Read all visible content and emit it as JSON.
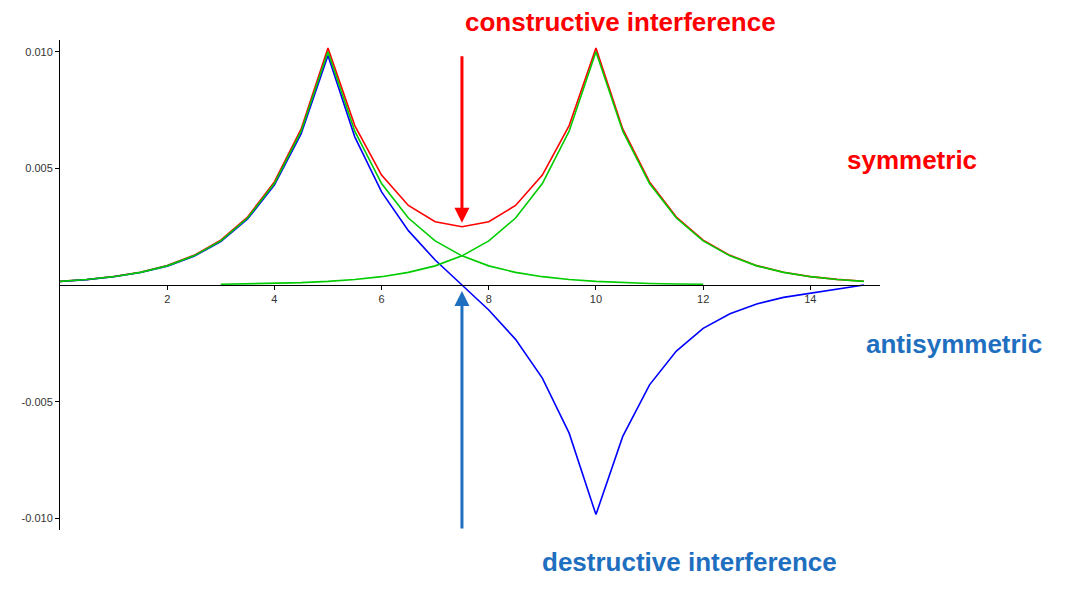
{
  "chart_data": {
    "type": "line",
    "x": [
      0,
      0.5,
      1,
      1.5,
      2,
      2.5,
      3,
      3.5,
      4,
      4.5,
      5,
      5.5,
      6,
      6.5,
      7,
      7.5,
      8,
      8.5,
      9,
      9.5,
      10,
      10.5,
      11,
      11.5,
      12,
      12.5,
      13,
      13.5,
      14,
      14.5,
      15
    ],
    "series": [
      {
        "color": "#ff0000",
        "values": [
          0.000157,
          0.000238,
          0.000361,
          0.000547,
          0.000831,
          0.00127,
          0.00192,
          0.00291,
          0.00442,
          0.00669,
          0.01016,
          0.00683,
          0.00471,
          0.00341,
          0.00271,
          0.0025,
          0.00271,
          0.00341,
          0.00471,
          0.00683,
          0.01016,
          0.00669,
          0.00442,
          0.00291,
          0.00192,
          0.00127,
          0.00083,
          0.00055,
          0.00036,
          0.00024,
          0.00016
        ]
      },
      {
        "color": "#0000ff",
        "values": [
          0.000153,
          0.000232,
          0.000353,
          0.000533,
          0.000809,
          0.00123,
          0.00186,
          0.00283,
          0.00428,
          0.00649,
          0.00984,
          0.00635,
          0.00399,
          0.00233,
          0.00107,
          0,
          -0.00107,
          -0.00233,
          -0.00399,
          -0.00635,
          -0.00984,
          -0.00649,
          -0.00428,
          -0.00283,
          -0.00186,
          -0.00123,
          -0.00081,
          -0.00053,
          -0.00035,
          -0.0002,
          0
        ]
      },
      {
        "color": "#00cc00",
        "values": [
          0.000155,
          0.000235,
          0.000357,
          0.00054,
          0.00082,
          0.00125,
          0.00189,
          0.00287,
          0.00435,
          0.00659,
          0.01,
          0.00659,
          0.00435,
          0.00287,
          0.00189,
          0.00125,
          0.00082,
          0.00054,
          0.000357,
          0.000235,
          0.000155,
          0.000102,
          6.7e-05,
          4.4e-05,
          2.9e-05,
          null,
          null,
          null,
          null,
          null,
          null
        ]
      },
      {
        "color": "#00cc00",
        "values": [
          null,
          null,
          null,
          null,
          null,
          null,
          2.9e-05,
          4.4e-05,
          6.7e-05,
          0.000102,
          0.000155,
          0.000235,
          0.000357,
          0.00054,
          0.00082,
          0.00125,
          0.00189,
          0.00287,
          0.00435,
          0.00659,
          0.01,
          0.00659,
          0.00435,
          0.00287,
          0.00189,
          0.00125,
          0.00082,
          0.00054,
          0.000357,
          0.000235,
          0.000155
        ]
      }
    ],
    "xlim": [
      0,
      15.3
    ],
    "ylim": [
      -0.0105,
      0.0105
    ],
    "xticks": [
      2,
      4,
      6,
      8,
      10,
      12,
      14
    ],
    "yticks": [
      {
        "value": -0.01,
        "label": "-0.010"
      },
      {
        "value": -0.005,
        "label": "-0.005"
      },
      {
        "value": 0.005,
        "label": "0.005"
      },
      {
        "value": 0.01,
        "label": "0.010"
      }
    ],
    "grid": false,
    "annotations": [
      "constructive interference",
      "symmetric",
      "antisymmetric",
      "destructive interference"
    ]
  }
}
